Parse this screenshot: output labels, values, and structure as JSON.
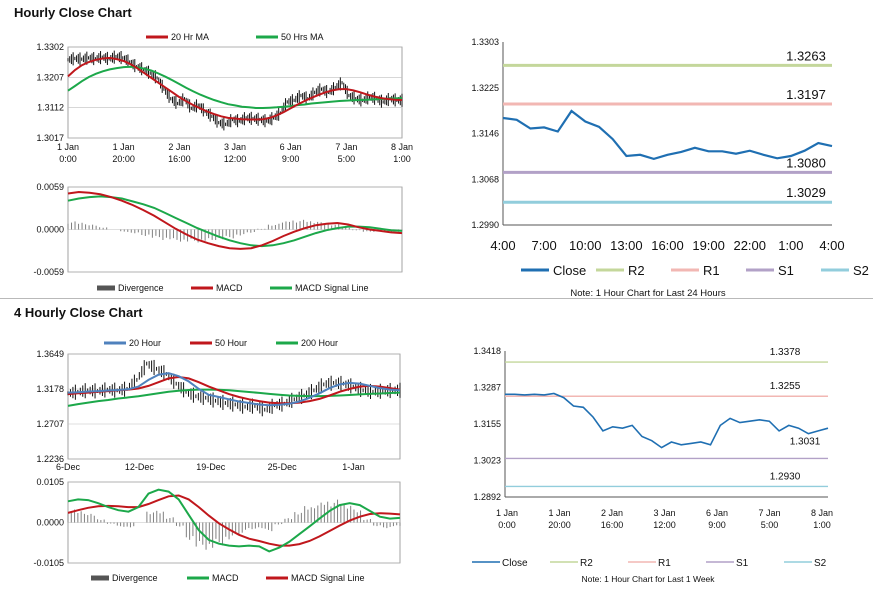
{
  "sections": {
    "hourly_title": "Hourly Close Chart",
    "four_hourly_title": "4 Hourly Close Chart"
  },
  "colors": {
    "price": "#111111",
    "ma20": "#c0171c",
    "ma50": "#1ca84a",
    "div": "#7f7f7f",
    "macd_red": "#c0171c",
    "macd_green": "#1ca84a",
    "blue_ma": "#4f81bd",
    "close": "#1f6fb2",
    "r2": "#c4d79b",
    "r1": "#f2b7b3",
    "s1": "#b2a1c7",
    "s2": "#92cddc",
    "grid": "#bfbfbf"
  },
  "chart_data": [
    {
      "id": "hourly_price",
      "type": "line",
      "legend": [
        "20 Hr MA",
        "50 Hrs MA"
      ],
      "yticks": [
        "1.3302",
        "1.3207",
        "1.3112",
        "1.3017"
      ],
      "ylim": [
        1.3017,
        1.3302
      ],
      "xticks": [
        [
          "1 Jan",
          "0:00"
        ],
        [
          "1 Jan",
          "20:00"
        ],
        [
          "2 Jan",
          "16:00"
        ],
        [
          "3 Jan",
          "12:00"
        ],
        [
          "6 Jan",
          "9:00"
        ],
        [
          "7 Jan",
          "5:00"
        ],
        [
          "8 Jan",
          "1:00"
        ]
      ],
      "price": [
        1.3262,
        1.3266,
        1.3264,
        1.3268,
        1.3265,
        1.327,
        1.3265,
        1.3272,
        1.3268,
        1.3255,
        1.324,
        1.3232,
        1.322,
        1.3205,
        1.317,
        1.314,
        1.3125,
        1.314,
        1.311,
        1.312,
        1.31,
        1.3085,
        1.3065,
        1.306,
        1.3075,
        1.307,
        1.308,
        1.3078,
        1.3075,
        1.307,
        1.308,
        1.3095,
        1.313,
        1.3135,
        1.315,
        1.314,
        1.316,
        1.317,
        1.316,
        1.3175,
        1.319,
        1.315,
        1.314,
        1.3135,
        1.3145,
        1.314,
        1.313,
        1.314,
        1.3135
      ],
      "ma20": [
        1.321,
        1.323,
        1.3245,
        1.3255,
        1.3262,
        1.3266,
        1.3268,
        1.3264,
        1.3258,
        1.3248,
        1.3235,
        1.322,
        1.3205,
        1.319,
        1.3175,
        1.316,
        1.3145,
        1.3132,
        1.312,
        1.311,
        1.31,
        1.3092,
        1.3085,
        1.308,
        1.3078,
        1.3076,
        1.3075,
        1.3075,
        1.3076,
        1.308,
        1.3088,
        1.3098,
        1.311,
        1.3122,
        1.3133,
        1.3143,
        1.3152,
        1.316,
        1.3166,
        1.317,
        1.317,
        1.3166,
        1.316,
        1.3153,
        1.3147,
        1.3142,
        1.3139,
        1.3137,
        1.3136
      ],
      "ma50": [
        1.3165,
        1.318,
        1.3195,
        1.3208,
        1.3218,
        1.3226,
        1.3232,
        1.3236,
        1.3239,
        1.324,
        1.3238,
        1.3234,
        1.3228,
        1.3219,
        1.3209,
        1.3198,
        1.3186,
        1.3174,
        1.3163,
        1.3153,
        1.3144,
        1.3136,
        1.3129,
        1.3123,
        1.3119,
        1.3115,
        1.3113,
        1.3111,
        1.3111,
        1.3112,
        1.3113,
        1.3115,
        1.3117,
        1.312,
        1.3122,
        1.3125,
        1.3127,
        1.3129,
        1.3131,
        1.3133,
        1.3134,
        1.3135,
        1.3136,
        1.3137,
        1.3138,
        1.3139,
        1.314,
        1.3141,
        1.3142
      ]
    },
    {
      "id": "hourly_macd",
      "type": "line",
      "legend": [
        "Divergence",
        "MACD",
        "MACD Signal Line"
      ],
      "yticks": [
        "0.0059",
        "0.0000",
        "-0.0059"
      ],
      "ylim": [
        -0.0059,
        0.0059
      ],
      "macd": [
        0.005,
        0.0052,
        0.0051,
        0.0049,
        0.0045,
        0.004,
        0.0034,
        0.0027,
        0.0019,
        0.001,
        0.0001,
        -0.0007,
        -0.0014,
        -0.0019,
        -0.0023,
        -0.0026,
        -0.0027,
        -0.0026,
        -0.0022,
        -0.0016,
        -0.0009,
        -0.0003,
        0.0002,
        0.0006,
        0.0008,
        0.0009,
        0.0007,
        0.0003,
        0.0,
        -0.0002,
        -0.0004,
        -0.0005
      ],
      "signal": [
        0.004,
        0.0043,
        0.0045,
        0.0046,
        0.0045,
        0.0043,
        0.0039,
        0.0035,
        0.003,
        0.0023,
        0.0016,
        0.0009,
        0.0002,
        -0.0004,
        -0.001,
        -0.0015,
        -0.0019,
        -0.0022,
        -0.0023,
        -0.0022,
        -0.0019,
        -0.0015,
        -0.001,
        -0.0005,
        -0.0001,
        0.0002,
        0.0004,
        0.0004,
        0.0003,
        0.0001,
        -0.0001,
        -0.0002
      ]
    },
    {
      "id": "hourly_levels",
      "type": "line",
      "legend": [
        "Close",
        "R2",
        "R1",
        "S1",
        "S2"
      ],
      "yticks": [
        "1.3303",
        "1.3225",
        "1.3146",
        "1.3068",
        "1.2990"
      ],
      "ylim": [
        1.299,
        1.3303
      ],
      "xticks": [
        "4:00",
        "7:00",
        "10:00",
        "13:00",
        "16:00",
        "19:00",
        "22:00",
        "1:00",
        "4:00"
      ],
      "levels": {
        "R2": 1.3263,
        "R1": 1.3197,
        "S1": 1.308,
        "S2": 1.3029
      },
      "level_labels": {
        "R2": "1.3263",
        "R1": "1.3197",
        "S1": "1.3080",
        "S2": "1.3029"
      },
      "close": [
        1.3173,
        1.317,
        1.3155,
        1.3157,
        1.315,
        1.3185,
        1.3167,
        1.3158,
        1.3137,
        1.3108,
        1.311,
        1.3103,
        1.311,
        1.3115,
        1.3122,
        1.3116,
        1.3116,
        1.3112,
        1.3117,
        1.311,
        1.3104,
        1.3108,
        1.3117,
        1.313,
        1.3125
      ],
      "note": "Note: 1 Hour Chart for Last 24 Hours"
    },
    {
      "id": "four_hourly_price",
      "type": "line",
      "legend": [
        "20 Hour",
        "50 Hour",
        "200 Hour"
      ],
      "yticks": [
        "1.3649",
        "1.3178",
        "1.2707",
        "1.2236"
      ],
      "ylim": [
        1.2236,
        1.3649
      ],
      "xticks": [
        "6-Dec",
        "12-Dec",
        "19-Dec",
        "25-Dec",
        "1-Jan"
      ],
      "price": [
        1.312,
        1.314,
        1.316,
        1.315,
        1.317,
        1.316,
        1.318,
        1.33,
        1.352,
        1.345,
        1.338,
        1.325,
        1.314,
        1.308,
        1.306,
        1.302,
        1.299,
        1.297,
        1.294,
        1.295,
        1.29,
        1.296,
        1.298,
        1.304,
        1.309,
        1.316,
        1.324,
        1.326,
        1.325,
        1.321,
        1.316,
        1.314,
        1.315,
        1.316
      ],
      "ma20": [
        1.313,
        1.3135,
        1.3145,
        1.315,
        1.3158,
        1.3165,
        1.3175,
        1.321,
        1.33,
        1.337,
        1.339,
        1.335,
        1.328,
        1.318,
        1.31,
        1.307,
        1.304,
        1.301,
        1.299,
        1.297,
        1.296,
        1.2965,
        1.298,
        1.301,
        1.306,
        1.312,
        1.319,
        1.324,
        1.326,
        1.325,
        1.322,
        1.319,
        1.317,
        1.316
      ],
      "ma50": [
        1.311,
        1.312,
        1.313,
        1.314,
        1.315,
        1.316,
        1.317,
        1.3185,
        1.322,
        1.327,
        1.332,
        1.334,
        1.332,
        1.327,
        1.321,
        1.316,
        1.311,
        1.307,
        1.304,
        1.3015,
        1.2995,
        1.2985,
        1.2985,
        1.2995,
        1.3015,
        1.3045,
        1.309,
        1.314,
        1.318,
        1.321,
        1.322,
        1.321,
        1.319,
        1.317
      ],
      "ma200": [
        1.295,
        1.2975,
        1.2995,
        1.3015,
        1.303,
        1.305,
        1.3065,
        1.308,
        1.31,
        1.312,
        1.314,
        1.3155,
        1.3165,
        1.317,
        1.317,
        1.3168,
        1.316,
        1.315,
        1.3138,
        1.3125,
        1.3112,
        1.31,
        1.309,
        1.3085,
        1.3082,
        1.3082,
        1.3085,
        1.309,
        1.3097,
        1.3105,
        1.3112,
        1.3118,
        1.3124,
        1.313
      ]
    },
    {
      "id": "four_hourly_macd",
      "type": "line",
      "legend": [
        "Divergence",
        "MACD",
        "MACD Signal Line"
      ],
      "yticks": [
        "0.0105",
        "0.0000",
        "-0.0105"
      ],
      "ylim": [
        -0.0105,
        0.0105
      ],
      "macd": [
        0.0055,
        0.006,
        0.0058,
        0.005,
        0.004,
        0.0032,
        0.0028,
        0.004,
        0.0075,
        0.0085,
        0.008,
        0.006,
        0.002,
        -0.002,
        -0.0045,
        -0.0055,
        -0.006,
        -0.0062,
        -0.006,
        -0.0062,
        -0.0075,
        -0.0065,
        -0.005,
        -0.003,
        -0.001,
        0.001,
        0.003,
        0.0045,
        0.005,
        0.0045,
        0.003,
        0.0015,
        0.001,
        0.0012
      ],
      "signal": [
        0.0025,
        0.0032,
        0.0038,
        0.0042,
        0.0043,
        0.0042,
        0.004,
        0.004,
        0.0048,
        0.0058,
        0.0068,
        0.007,
        0.006,
        0.004,
        0.0018,
        -0.0002,
        -0.0018,
        -0.0032,
        -0.0042,
        -0.0048,
        -0.0055,
        -0.006,
        -0.006,
        -0.0056,
        -0.0048,
        -0.0036,
        -0.0022,
        -0.0008,
        0.0005,
        0.0015,
        0.0022,
        0.0024,
        0.0023,
        0.0021
      ]
    },
    {
      "id": "four_hourly_levels",
      "type": "line",
      "legend": [
        "Close",
        "R2",
        "R1",
        "S1",
        "S2"
      ],
      "yticks": [
        "1.3418",
        "1.3287",
        "1.3155",
        "1.3023",
        "1.2892"
      ],
      "ylim": [
        1.2892,
        1.3418
      ],
      "xticks": [
        [
          "1 Jan",
          "0:00"
        ],
        [
          "1 Jan",
          "20:00"
        ],
        [
          "2 Jan",
          "16:00"
        ],
        [
          "3 Jan",
          "12:00"
        ],
        [
          "6 Jan",
          "9:00"
        ],
        [
          "7 Jan",
          "5:00"
        ],
        [
          "8 Jan",
          "1:00"
        ]
      ],
      "levels": {
        "R2": 1.3378,
        "R1": 1.3255,
        "S1": 1.3031,
        "S2": 1.293
      },
      "level_labels": {
        "R2": "1.3378",
        "R1": "1.3255",
        "S1": "1.3031",
        "S2": "1.2930"
      },
      "close": [
        1.3262,
        1.3262,
        1.326,
        1.3262,
        1.326,
        1.3265,
        1.325,
        1.322,
        1.3215,
        1.318,
        1.313,
        1.3145,
        1.314,
        1.315,
        1.311,
        1.3095,
        1.307,
        1.309,
        1.308,
        1.3085,
        1.309,
        1.308,
        1.315,
        1.3175,
        1.316,
        1.3165,
        1.317,
        1.3165,
        1.313,
        1.315,
        1.314,
        1.312,
        1.313,
        1.314
      ],
      "note": "Note: 1 Hour Chart for Last 1 Week"
    }
  ]
}
